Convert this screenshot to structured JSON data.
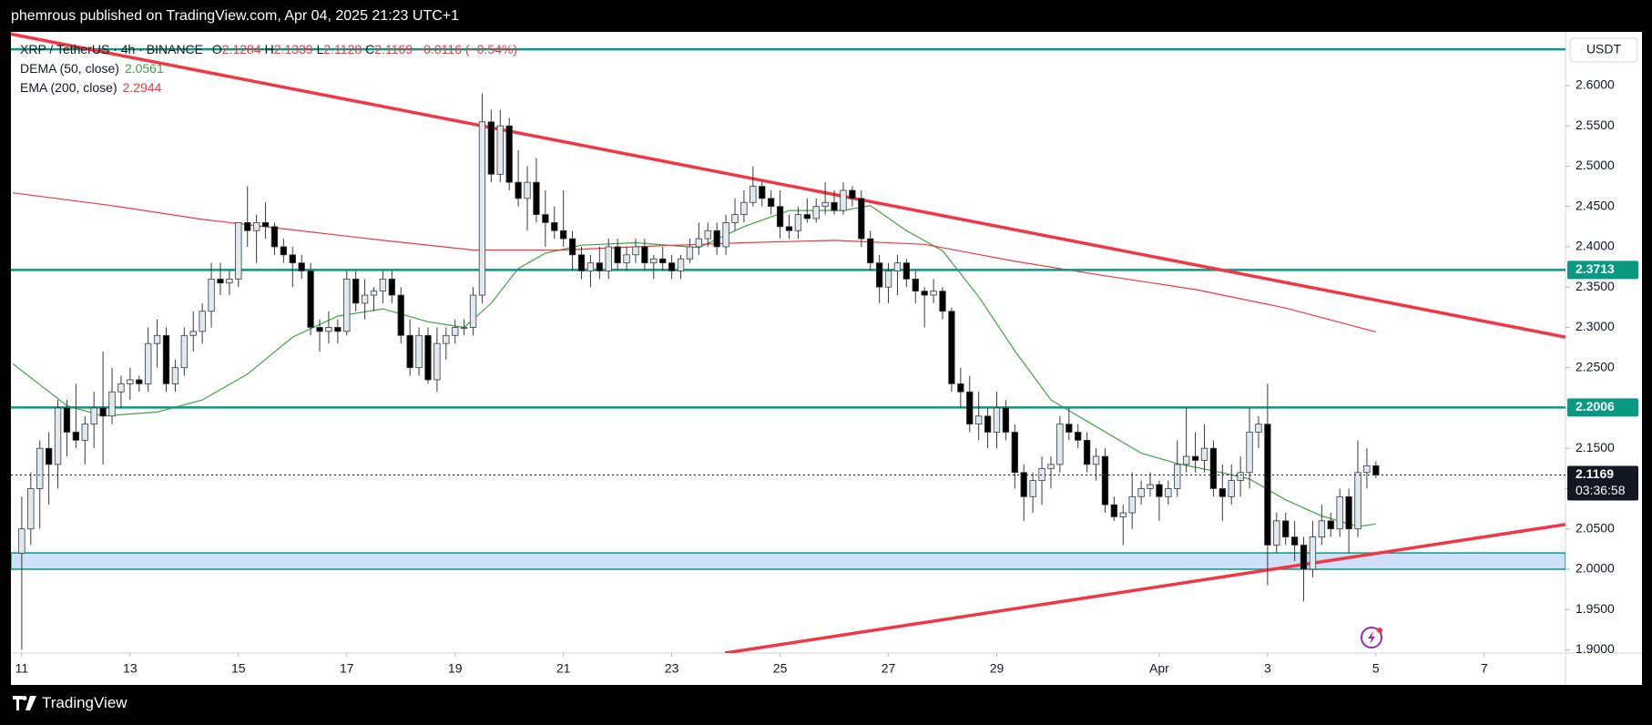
{
  "header": {
    "text": "phemrous published on TradingView.com, Apr 04, 2025 21:23 UTC+1"
  },
  "footer": {
    "brand": "TradingView"
  },
  "chart_data": {
    "type": "candlestick",
    "title": "XRP / TetherUS · 4h · BINANCE",
    "currency": "USDT",
    "ohlc_letters": [
      "O",
      "H",
      "L",
      "C"
    ],
    "change": "−0.0116 (−0.54%)",
    "countdown": "03:36:58",
    "up_color": "#dfeaf0",
    "down_color": "#000000",
    "open": [
      2.02,
      2.05,
      2.1,
      2.15,
      2.13,
      2.2,
      2.17,
      2.16,
      2.18,
      2.2,
      2.19,
      2.22,
      2.23,
      2.235,
      2.23,
      2.28,
      2.29,
      2.23,
      2.25,
      2.29,
      2.295,
      2.32,
      2.36,
      2.355,
      2.36,
      2.43,
      2.42,
      2.43,
      2.425,
      2.4,
      2.39,
      2.38,
      2.37,
      2.3,
      2.295,
      2.3,
      2.295,
      2.36,
      2.33,
      2.34,
      2.345,
      2.36,
      2.34,
      2.29,
      2.25,
      2.29,
      2.235,
      2.28,
      2.29,
      2.3,
      2.3,
      2.34,
      2.555,
      2.49,
      2.55,
      2.48,
      2.46,
      2.48,
      2.44,
      2.43,
      2.42,
      2.41,
      2.39,
      2.37,
      2.38,
      2.37,
      2.4,
      2.38,
      2.39,
      2.4,
      2.38,
      2.385,
      2.38,
      2.37,
      2.385,
      2.4,
      2.41,
      2.42,
      2.4,
      2.43,
      2.44,
      2.455,
      2.475,
      2.46,
      2.45,
      2.425,
      2.42,
      2.44,
      2.435,
      2.45,
      2.455,
      2.445,
      2.47,
      2.46,
      2.41,
      2.38,
      2.35,
      2.37,
      2.38,
      2.36,
      2.345,
      2.34,
      2.345,
      2.32,
      2.23,
      2.22,
      2.18,
      2.19,
      2.17,
      2.2,
      2.17,
      2.12,
      2.09,
      2.11,
      2.125,
      2.13,
      2.18,
      2.17,
      2.16,
      2.13,
      2.14,
      2.08,
      2.065,
      2.07,
      2.09,
      2.1,
      2.105,
      2.09,
      2.1,
      2.13,
      2.14,
      2.135,
      2.15,
      2.1,
      2.09,
      2.11,
      2.12,
      2.17,
      2.18,
      2.03,
      2.06,
      2.04,
      2.03,
      2.0,
      2.04,
      2.06,
      2.05,
      2.09,
      2.05,
      2.12,
      2.1284
    ],
    "high": [
      2.09,
      2.12,
      2.16,
      2.17,
      2.21,
      2.21,
      2.23,
      2.19,
      2.22,
      2.27,
      2.25,
      2.24,
      2.25,
      2.24,
      2.3,
      2.31,
      2.3,
      2.26,
      2.3,
      2.32,
      2.33,
      2.38,
      2.38,
      2.37,
      2.43,
      2.475,
      2.44,
      2.455,
      2.43,
      2.41,
      2.4,
      2.39,
      2.38,
      2.31,
      2.32,
      2.31,
      2.37,
      2.37,
      2.36,
      2.35,
      2.37,
      2.37,
      2.35,
      2.31,
      2.3,
      2.3,
      2.3,
      2.3,
      2.31,
      2.31,
      2.35,
      2.59,
      2.57,
      2.57,
      2.56,
      2.52,
      2.5,
      2.51,
      2.47,
      2.45,
      2.47,
      2.42,
      2.4,
      2.39,
      2.4,
      2.41,
      2.41,
      2.4,
      2.41,
      2.41,
      2.39,
      2.4,
      2.39,
      2.39,
      2.41,
      2.43,
      2.43,
      2.43,
      2.44,
      2.46,
      2.47,
      2.5,
      2.48,
      2.47,
      2.47,
      2.44,
      2.45,
      2.46,
      2.46,
      2.48,
      2.47,
      2.48,
      2.475,
      2.47,
      2.42,
      2.39,
      2.38,
      2.39,
      2.385,
      2.37,
      2.35,
      2.36,
      2.35,
      2.325,
      2.25,
      2.24,
      2.22,
      2.2,
      2.22,
      2.21,
      2.18,
      2.13,
      2.12,
      2.14,
      2.14,
      2.19,
      2.2,
      2.18,
      2.17,
      2.15,
      2.15,
      2.09,
      2.08,
      2.12,
      2.11,
      2.12,
      2.11,
      2.11,
      2.16,
      2.2,
      2.17,
      2.18,
      2.16,
      2.13,
      2.13,
      2.14,
      2.2,
      2.19,
      2.23,
      2.07,
      2.07,
      2.06,
      2.04,
      2.06,
      2.08,
      2.07,
      2.1,
      2.1,
      2.16,
      2.15,
      2.1339
    ],
    "low": [
      1.9,
      2.03,
      2.05,
      2.08,
      2.1,
      2.14,
      2.15,
      2.13,
      2.15,
      2.13,
      2.18,
      2.2,
      2.21,
      2.22,
      2.22,
      2.25,
      2.22,
      2.22,
      2.24,
      2.27,
      2.28,
      2.3,
      2.34,
      2.34,
      2.35,
      2.4,
      2.38,
      2.41,
      2.39,
      2.38,
      2.35,
      2.36,
      2.29,
      2.27,
      2.28,
      2.28,
      2.29,
      2.32,
      2.31,
      2.32,
      2.33,
      2.33,
      2.28,
      2.24,
      2.24,
      2.23,
      2.22,
      2.26,
      2.28,
      2.29,
      2.29,
      2.33,
      2.48,
      2.48,
      2.47,
      2.45,
      2.42,
      2.43,
      2.4,
      2.41,
      2.4,
      2.37,
      2.36,
      2.35,
      2.36,
      2.36,
      2.37,
      2.37,
      2.38,
      2.37,
      2.36,
      2.37,
      2.36,
      2.36,
      2.38,
      2.39,
      2.4,
      2.39,
      2.39,
      2.42,
      2.43,
      2.45,
      2.45,
      2.44,
      2.41,
      2.41,
      2.41,
      2.43,
      2.43,
      2.44,
      2.44,
      2.44,
      2.45,
      2.4,
      2.37,
      2.33,
      2.33,
      2.34,
      2.35,
      2.33,
      2.3,
      2.33,
      2.31,
      2.22,
      2.2,
      2.17,
      2.16,
      2.15,
      2.15,
      2.16,
      2.1,
      2.06,
      2.07,
      2.08,
      2.1,
      2.12,
      2.16,
      2.15,
      2.12,
      2.11,
      2.07,
      2.06,
      2.03,
      2.05,
      2.08,
      2.09,
      2.06,
      2.08,
      2.09,
      2.12,
      2.12,
      2.12,
      2.09,
      2.06,
      2.08,
      2.09,
      2.1,
      2.15,
      1.98,
      2.02,
      2.03,
      2.01,
      1.96,
      1.99,
      2.03,
      2.04,
      2.04,
      2.02,
      2.04,
      2.1,
      2.1128
    ],
    "close": [
      2.05,
      2.1,
      2.15,
      2.13,
      2.2,
      2.17,
      2.16,
      2.18,
      2.2,
      2.19,
      2.22,
      2.23,
      2.235,
      2.23,
      2.28,
      2.29,
      2.23,
      2.25,
      2.29,
      2.295,
      2.32,
      2.36,
      2.355,
      2.36,
      2.43,
      2.42,
      2.43,
      2.425,
      2.4,
      2.39,
      2.38,
      2.37,
      2.3,
      2.295,
      2.3,
      2.295,
      2.36,
      2.33,
      2.34,
      2.345,
      2.36,
      2.34,
      2.29,
      2.25,
      2.29,
      2.235,
      2.28,
      2.29,
      2.3,
      2.3,
      2.34,
      2.555,
      2.49,
      2.55,
      2.48,
      2.46,
      2.48,
      2.44,
      2.43,
      2.42,
      2.41,
      2.39,
      2.37,
      2.38,
      2.37,
      2.4,
      2.38,
      2.39,
      2.4,
      2.38,
      2.385,
      2.38,
      2.37,
      2.385,
      2.4,
      2.41,
      2.42,
      2.4,
      2.43,
      2.44,
      2.455,
      2.475,
      2.46,
      2.45,
      2.425,
      2.42,
      2.44,
      2.435,
      2.45,
      2.455,
      2.445,
      2.47,
      2.46,
      2.41,
      2.38,
      2.35,
      2.37,
      2.38,
      2.36,
      2.345,
      2.34,
      2.345,
      2.32,
      2.23,
      2.22,
      2.18,
      2.19,
      2.17,
      2.2,
      2.17,
      2.12,
      2.09,
      2.11,
      2.125,
      2.13,
      2.18,
      2.17,
      2.16,
      2.13,
      2.14,
      2.08,
      2.065,
      2.07,
      2.09,
      2.1,
      2.105,
      2.09,
      2.1,
      2.13,
      2.14,
      2.135,
      2.15,
      2.1,
      2.09,
      2.11,
      2.12,
      2.17,
      2.18,
      2.03,
      2.06,
      2.04,
      2.03,
      2.0,
      2.04,
      2.06,
      2.05,
      2.09,
      2.05,
      2.12,
      2.1284,
      2.1169
    ],
    "series": [
      {
        "name": "DEMA (50, close)",
        "color": "#43a047",
        "x": [
          -1,
          5,
          9,
          15,
          20,
          25,
          30,
          35,
          40,
          45,
          49,
          52,
          55,
          58,
          62,
          68,
          75,
          80,
          85,
          91,
          94,
          98,
          102,
          106,
          110,
          114,
          119,
          124,
          128,
          132,
          136,
          140,
          144,
          148,
          150
        ],
        "values": [
          2.255,
          2.203,
          2.19,
          2.195,
          2.21,
          2.242,
          2.288,
          2.314,
          2.323,
          2.307,
          2.3,
          2.33,
          2.373,
          2.392,
          2.402,
          2.405,
          2.399,
          2.425,
          2.445,
          2.445,
          2.451,
          2.42,
          2.395,
          2.338,
          2.271,
          2.21,
          2.177,
          2.144,
          2.131,
          2.122,
          2.112,
          2.086,
          2.066,
          2.053,
          2.0561
        ]
      },
      {
        "name": "EMA (200, close)",
        "color": "#f23645",
        "x": [
          -1,
          10,
          20,
          30,
          40,
          50,
          60,
          70,
          80,
          90,
          100,
          110,
          120,
          130,
          140,
          150
        ],
        "values": [
          2.467,
          2.451,
          2.434,
          2.421,
          2.408,
          2.396,
          2.396,
          2.401,
          2.405,
          2.408,
          2.403,
          2.382,
          2.364,
          2.347,
          2.324,
          2.2944
        ]
      }
    ],
    "levels": [
      {
        "value": 2.645,
        "price_tag": false
      },
      {
        "value": 2.3713,
        "price_tag": true
      },
      {
        "value": 2.2006,
        "price_tag": true
      }
    ],
    "level_color": "#089981",
    "zone": [
      2.0,
      2.0202
    ],
    "zone_color": "#cfe0fb",
    "trendlines": [
      {
        "x": [
          -1.2,
          171
        ],
        "values": [
          2.664,
          2.288
        ]
      },
      {
        "x": [
          77.9,
          171
        ],
        "values": [
          1.896,
          2.0555
        ]
      }
    ],
    "trendline_color": "#f23645",
    "xlim": [
      -1.2,
      171
    ],
    "xticks": [
      {
        "value": 0,
        "label": "11"
      },
      {
        "value": 12,
        "label": "13"
      },
      {
        "value": 24,
        "label": "15"
      },
      {
        "value": 36,
        "label": "17"
      },
      {
        "value": 48,
        "label": "19"
      },
      {
        "value": 60,
        "label": "21"
      },
      {
        "value": 72,
        "label": "23"
      },
      {
        "value": 84,
        "label": "25"
      },
      {
        "value": 96,
        "label": "27"
      },
      {
        "value": 108,
        "label": "29"
      },
      {
        "value": 126,
        "label": "Apr"
      },
      {
        "value": 138,
        "label": "3"
      },
      {
        "value": 150,
        "label": "5"
      },
      {
        "value": 162,
        "label": "7"
      }
    ],
    "ylim": [
      1.896,
      2.6666
    ],
    "yticks": [
      {
        "value": 1.9,
        "label": "1.9000"
      },
      {
        "value": 1.95,
        "label": "1.9500"
      },
      {
        "value": 2.0,
        "label": "2.0000"
      },
      {
        "value": 2.05,
        "label": "2.0500"
      },
      {
        "value": 2.1,
        "label": "2.1000"
      },
      {
        "value": 2.15,
        "label": "2.1500"
      },
      {
        "value": 2.2,
        "label": "2.2000"
      },
      {
        "value": 2.25,
        "label": "2.2500"
      },
      {
        "value": 2.3,
        "label": "2.3000"
      },
      {
        "value": 2.35,
        "label": "2.3500"
      },
      {
        "value": 2.4,
        "label": "2.4000"
      },
      {
        "value": 2.45,
        "label": "2.4500"
      },
      {
        "value": 2.5,
        "label": "2.5000"
      },
      {
        "value": 2.55,
        "label": "2.5500"
      },
      {
        "value": 2.6,
        "label": "2.6000"
      }
    ]
  }
}
